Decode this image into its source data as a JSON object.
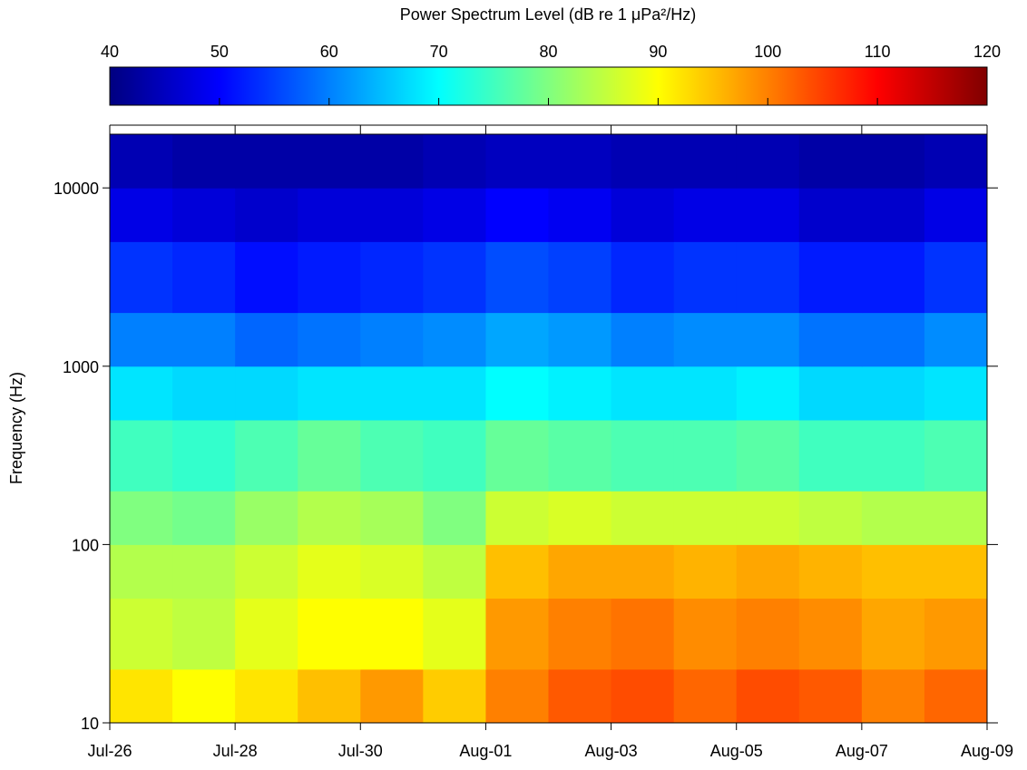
{
  "chart_data": {
    "type": "heatmap",
    "title": "Power Spectrum Level (dB re 1 μPa²/Hz)",
    "y_label": "Frequency (Hz)",
    "colormap": "jet",
    "x": [
      "Jul-26",
      "Jul-27",
      "Jul-28",
      "Jul-29",
      "Jul-30",
      "Jul-31",
      "Aug-01",
      "Aug-02",
      "Aug-03",
      "Aug-04",
      "Aug-05",
      "Aug-06",
      "Aug-07",
      "Aug-08"
    ],
    "xlim": [
      "Jul-26",
      "Aug-09"
    ],
    "xticks": [
      "Jul-26",
      "Jul-28",
      "Jul-30",
      "Aug-01",
      "Aug-03",
      "Aug-05",
      "Aug-07",
      "Aug-09"
    ],
    "ybins": [
      10,
      20,
      50,
      100,
      200,
      500,
      1000,
      2000,
      5000,
      10000,
      20000
    ],
    "ylim": [
      10,
      20000
    ],
    "yticks": [
      10,
      100,
      1000,
      10000
    ],
    "log_y": true,
    "zlim": [
      40,
      120
    ],
    "zticks": [
      40,
      50,
      60,
      70,
      80,
      90,
      100,
      110,
      120
    ],
    "values": [
      [
        92,
        90,
        92,
        95,
        98,
        94,
        100,
        103,
        104,
        102,
        104,
        103,
        100,
        102
      ],
      [
        86,
        85,
        88,
        90,
        90,
        88,
        98,
        100,
        101,
        99,
        100,
        99,
        97,
        98
      ],
      [
        84,
        84,
        86,
        88,
        87,
        85,
        95,
        97,
        97,
        96,
        97,
        96,
        95,
        95
      ],
      [
        80,
        79,
        82,
        84,
        83,
        80,
        86,
        87,
        86,
        86,
        86,
        85,
        84,
        84
      ],
      [
        75,
        74,
        76,
        78,
        76,
        75,
        78,
        77,
        76,
        76,
        77,
        75,
        75,
        76
      ],
      [
        68,
        67,
        67,
        68,
        68,
        68,
        70,
        69,
        68,
        68,
        69,
        67,
        67,
        68
      ],
      [
        60,
        60,
        58,
        59,
        60,
        61,
        63,
        62,
        60,
        61,
        61,
        59,
        59,
        61
      ],
      [
        54,
        53,
        51,
        52,
        53,
        54,
        56,
        55,
        53,
        54,
        54,
        52,
        52,
        54
      ],
      [
        48,
        47,
        46,
        47,
        47,
        48,
        50,
        49,
        47,
        48,
        48,
        46,
        46,
        48
      ],
      [
        44,
        43,
        43,
        43,
        43,
        44,
        45,
        45,
        44,
        44,
        44,
        43,
        43,
        44
      ]
    ]
  }
}
